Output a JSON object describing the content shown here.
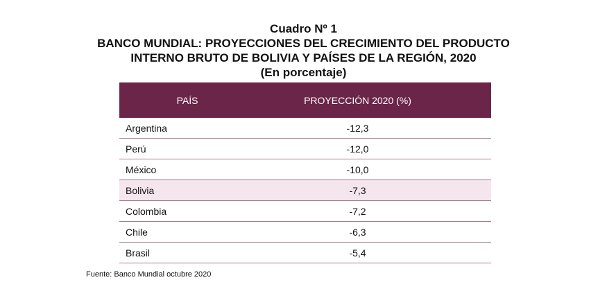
{
  "title": {
    "line1": "Cuadro Nº 1",
    "line2": "BANCO MUNDIAL: PROYECCIONES DEL CRECIMIENTO DEL PRODUCTO",
    "line3": "INTERNO BRUTO DE BOLIVIA Y PAÍSES DE LA REGIÓN, 2020",
    "line4": "(En porcentaje)"
  },
  "table": {
    "headers": {
      "country": "PAÍS",
      "projection": "PROYECCIÓN 2020 (%)"
    },
    "header_color": "#6b2549",
    "highlight_color": "#f4e6ec",
    "rows": [
      {
        "country": "Argentina",
        "value": "-12,3"
      },
      {
        "country": "Perú",
        "value": "-12,0"
      },
      {
        "country": "México",
        "value": "-10,0"
      },
      {
        "country": "Bolivia",
        "value": "-7,3"
      },
      {
        "country": "Colombia",
        "value": "-7,2"
      },
      {
        "country": "Chile",
        "value": "-6,3"
      },
      {
        "country": "Brasil",
        "value": "-5,4"
      }
    ]
  },
  "source": "Fuente: Banco Mundial octubre 2020"
}
